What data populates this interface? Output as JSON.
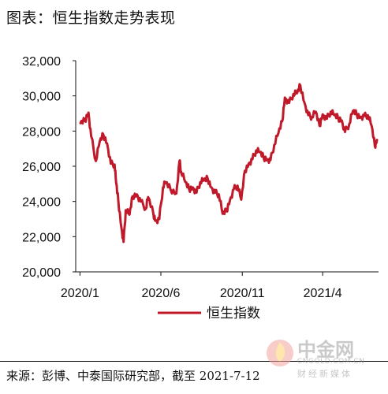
{
  "title": "图表：恒生指数走势表现",
  "source": "来源：彭博、中泰国际研究部，截至 2021-7-12",
  "watermark": {
    "brand": "中金网",
    "url": "CNGOLD.COM.CN",
    "sub": "财经新媒体"
  },
  "colors": {
    "line": "#c0192a",
    "text": "#111111"
  },
  "chart_data": {
    "type": "line",
    "title": "",
    "xlabel": "",
    "ylabel": "",
    "x_tick_labels": [
      "2020/1",
      "2020/6",
      "2020/11",
      "2021/4"
    ],
    "y_tick_labels": [
      "20,000",
      "22,000",
      "24,000",
      "26,000",
      "28,000",
      "30,000",
      "32,000"
    ],
    "ylim": [
      20000,
      32000
    ],
    "grid": false,
    "legend_position": "bottom-center",
    "series": [
      {
        "name": "恒生指数",
        "x": [
          "2020-01-02",
          "2020-01-10",
          "2020-01-17",
          "2020-01-22",
          "2020-01-31",
          "2020-02-07",
          "2020-02-14",
          "2020-02-21",
          "2020-02-28",
          "2020-03-06",
          "2020-03-09",
          "2020-03-13",
          "2020-03-19",
          "2020-03-23",
          "2020-03-27",
          "2020-04-03",
          "2020-04-09",
          "2020-04-17",
          "2020-04-24",
          "2020-05-04",
          "2020-05-08",
          "2020-05-18",
          "2020-05-22",
          "2020-05-29",
          "2020-06-05",
          "2020-06-10",
          "2020-06-19",
          "2020-06-30",
          "2020-07-06",
          "2020-07-09",
          "2020-07-17",
          "2020-07-24",
          "2020-07-31",
          "2020-08-07",
          "2020-08-14",
          "2020-08-21",
          "2020-08-28",
          "2020-09-04",
          "2020-09-11",
          "2020-09-18",
          "2020-09-25",
          "2020-10-02",
          "2020-10-09",
          "2020-10-16",
          "2020-10-23",
          "2020-10-30",
          "2020-11-06",
          "2020-11-13",
          "2020-11-20",
          "2020-11-27",
          "2020-12-04",
          "2020-12-11",
          "2020-12-18",
          "2020-12-24",
          "2020-12-31",
          "2021-01-08",
          "2021-01-15",
          "2021-01-20",
          "2021-01-28",
          "2021-02-05",
          "2021-02-12",
          "2021-02-18",
          "2021-02-26",
          "2021-03-05",
          "2021-03-12",
          "2021-03-19",
          "2021-03-26",
          "2021-04-01",
          "2021-04-09",
          "2021-04-16",
          "2021-04-23",
          "2021-04-30",
          "2021-05-07",
          "2021-05-13",
          "2021-05-21",
          "2021-05-28",
          "2021-06-04",
          "2021-06-11",
          "2021-06-18",
          "2021-06-25",
          "2021-07-02",
          "2021-07-08",
          "2021-07-12"
        ],
        "values": [
          28450,
          28600,
          29050,
          27700,
          26300,
          27400,
          27800,
          27300,
          26150,
          26100,
          25050,
          24050,
          22500,
          21700,
          23500,
          23250,
          24300,
          24400,
          24000,
          23600,
          24250,
          23300,
          22900,
          23000,
          24800,
          25100,
          24700,
          24450,
          26300,
          25700,
          25100,
          24700,
          24800,
          24500,
          25100,
          25200,
          25300,
          24800,
          24500,
          24400,
          23300,
          23450,
          24100,
          24700,
          24900,
          24100,
          25750,
          26150,
          26400,
          26900,
          26800,
          26500,
          26400,
          26350,
          27200,
          27900,
          28550,
          29900,
          29600,
          30100,
          30150,
          30600,
          29600,
          28900,
          28800,
          29100,
          28300,
          28950,
          28700,
          29100,
          28900,
          28750,
          28600,
          27950,
          28400,
          29150,
          28950,
          28800,
          28850,
          28900,
          28300,
          27150,
          27500
        ]
      }
    ]
  }
}
